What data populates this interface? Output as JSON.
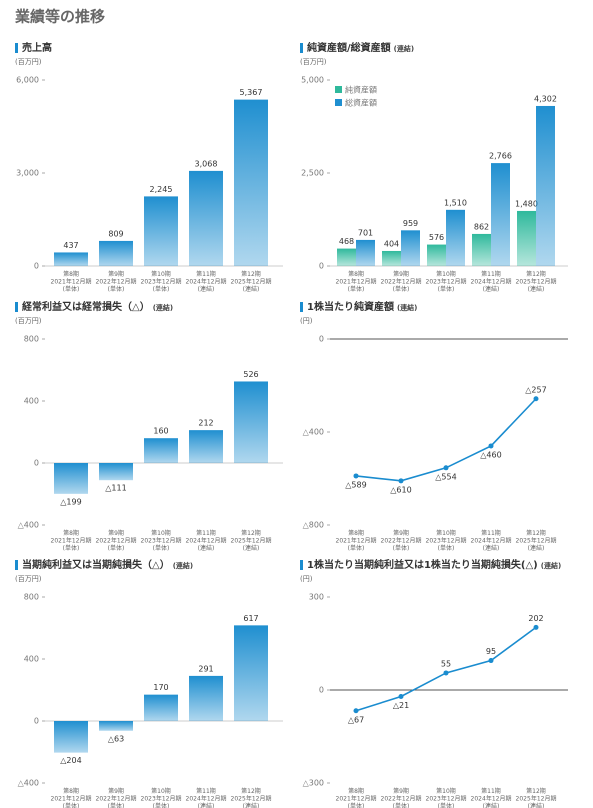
{
  "page_title": "業績等の推移",
  "chart_data": [
    {
      "type": "bar",
      "title": "売上高",
      "unit": "(百万円)",
      "color": "#1f8fd0",
      "categories": [
        [
          "第8期",
          "2021年12月期",
          "(単体)"
        ],
        [
          "第9期",
          "2022年12月期",
          "(単体)"
        ],
        [
          "第10期",
          "2023年12月期",
          "(単体)"
        ],
        [
          "第11期",
          "2024年12月期",
          "(連結)"
        ],
        [
          "第12期",
          "2025年12月期",
          "(連結)"
        ]
      ],
      "values": [
        437,
        809,
        2245,
        3068,
        5367
      ],
      "value_labels": [
        "437",
        "809",
        "2,245",
        "3,068",
        "5,367"
      ],
      "ylim": [
        0,
        6000
      ],
      "yticks": [
        0,
        {
          "value": 3000,
          "label": "3,000"
        },
        {
          "value": 6000,
          "label": "6,000"
        }
      ]
    },
    {
      "type": "bar",
      "title": "純資産額/総資産額",
      "note": "(連結)",
      "unit": "(百万円)",
      "legend": "upper left",
      "categories": [
        [
          "第8期",
          "2021年12月期",
          "(単体)"
        ],
        [
          "第9期",
          "2022年12月期",
          "(単体)"
        ],
        [
          "第10期",
          "2023年12月期",
          "(単体)"
        ],
        [
          "第11期",
          "2024年12月期",
          "(連結)"
        ],
        [
          "第12期",
          "2025年12月期",
          "(連結)"
        ]
      ],
      "series": [
        {
          "name": "純資産額",
          "color": "#2fb99c",
          "values": [
            468,
            404,
            576,
            862,
            1480
          ],
          "value_labels": [
            "468",
            "404",
            "576",
            "862",
            "1,480"
          ]
        },
        {
          "name": "総資産額",
          "color": "#1f8fd0",
          "values": [
            701,
            959,
            1510,
            2766,
            4302
          ],
          "value_labels": [
            "701",
            "959",
            "1,510",
            "2,766",
            "4,302"
          ]
        }
      ],
      "ylim": [
        0,
        5000
      ],
      "yticks": [
        0,
        {
          "value": 2500,
          "label": "2,500"
        },
        {
          "value": 5000,
          "label": "5,000"
        }
      ]
    },
    {
      "type": "bar",
      "title": "経常利益又は経常損失（△）",
      "note": "(連結)",
      "unit": "(百万円)",
      "color": "#1f8fd0",
      "categories": [
        [
          "第8期",
          "2021年12月期",
          "(単体)"
        ],
        [
          "第9期",
          "2022年12月期",
          "(単体)"
        ],
        [
          "第10期",
          "2023年12月期",
          "(単体)"
        ],
        [
          "第11期",
          "2024年12月期",
          "(連結)"
        ],
        [
          "第12期",
          "2025年12月期",
          "(連結)"
        ]
      ],
      "values": [
        -199,
        -111,
        160,
        212,
        526
      ],
      "value_labels": [
        "△199",
        "△111",
        "160",
        "212",
        "526"
      ],
      "ylim": [
        -400,
        800
      ],
      "yticks": [
        {
          "value": -400,
          "label": "△400"
        },
        0,
        400,
        800
      ]
    },
    {
      "type": "line",
      "title": "1株当たり純資産額",
      "note": "(連結)",
      "unit": "(円)",
      "color": "#1a8ccf",
      "categories": [
        [
          "第8期",
          "2021年12月期",
          "(単体)"
        ],
        [
          "第9期",
          "2022年12月期",
          "(単体)"
        ],
        [
          "第10期",
          "2023年12月期",
          "(単体)"
        ],
        [
          "第11期",
          "2024年12月期",
          "(連結)"
        ],
        [
          "第12期",
          "2025年12月期",
          "(連結)"
        ]
      ],
      "values": [
        -589,
        -610,
        -554,
        -460,
        -257
      ],
      "value_labels": [
        "△589",
        "△610",
        "△554",
        "△460",
        "△257"
      ],
      "ylim": [
        -800,
        0
      ],
      "yticks": [
        {
          "value": -800,
          "label": "△800"
        },
        {
          "value": -400,
          "label": "△400"
        },
        0
      ]
    },
    {
      "type": "bar",
      "title": "当期純利益又は当期純損失（△）",
      "note": "(連結)",
      "unit": "(百万円)",
      "color": "#1f8fd0",
      "categories": [
        [
          "第8期",
          "2021年12月期",
          "(単体)"
        ],
        [
          "第9期",
          "2022年12月期",
          "(単体)"
        ],
        [
          "第10期",
          "2023年12月期",
          "(単体)"
        ],
        [
          "第11期",
          "2024年12月期",
          "(連結)"
        ],
        [
          "第12期",
          "2025年12月期",
          "(連結)"
        ]
      ],
      "values": [
        -204,
        -63,
        170,
        291,
        617
      ],
      "value_labels": [
        "△204",
        "△63",
        "170",
        "291",
        "617"
      ],
      "ylim": [
        -400,
        800
      ],
      "yticks": [
        {
          "value": -400,
          "label": "△400"
        },
        0,
        400,
        800
      ]
    },
    {
      "type": "line",
      "title": "1株当たり当期純利益又は1株当たり当期純損失(△)",
      "note": "(連結)",
      "unit": "(円)",
      "color": "#1a8ccf",
      "categories": [
        [
          "第8期",
          "2021年12月期",
          "(単体)"
        ],
        [
          "第9期",
          "2022年12月期",
          "(単体)"
        ],
        [
          "第10期",
          "2023年12月期",
          "(単体)"
        ],
        [
          "第11期",
          "2024年12月期",
          "(連結)"
        ],
        [
          "第12期",
          "2025年12月期",
          "(連結)"
        ]
      ],
      "values": [
        -67,
        -21,
        55,
        95,
        202
      ],
      "value_labels": [
        "△67",
        "△21",
        "55",
        "95",
        "202"
      ],
      "ylim": [
        -300,
        300
      ],
      "yticks": [
        {
          "value": -300,
          "label": "△300"
        },
        0,
        300
      ]
    }
  ]
}
